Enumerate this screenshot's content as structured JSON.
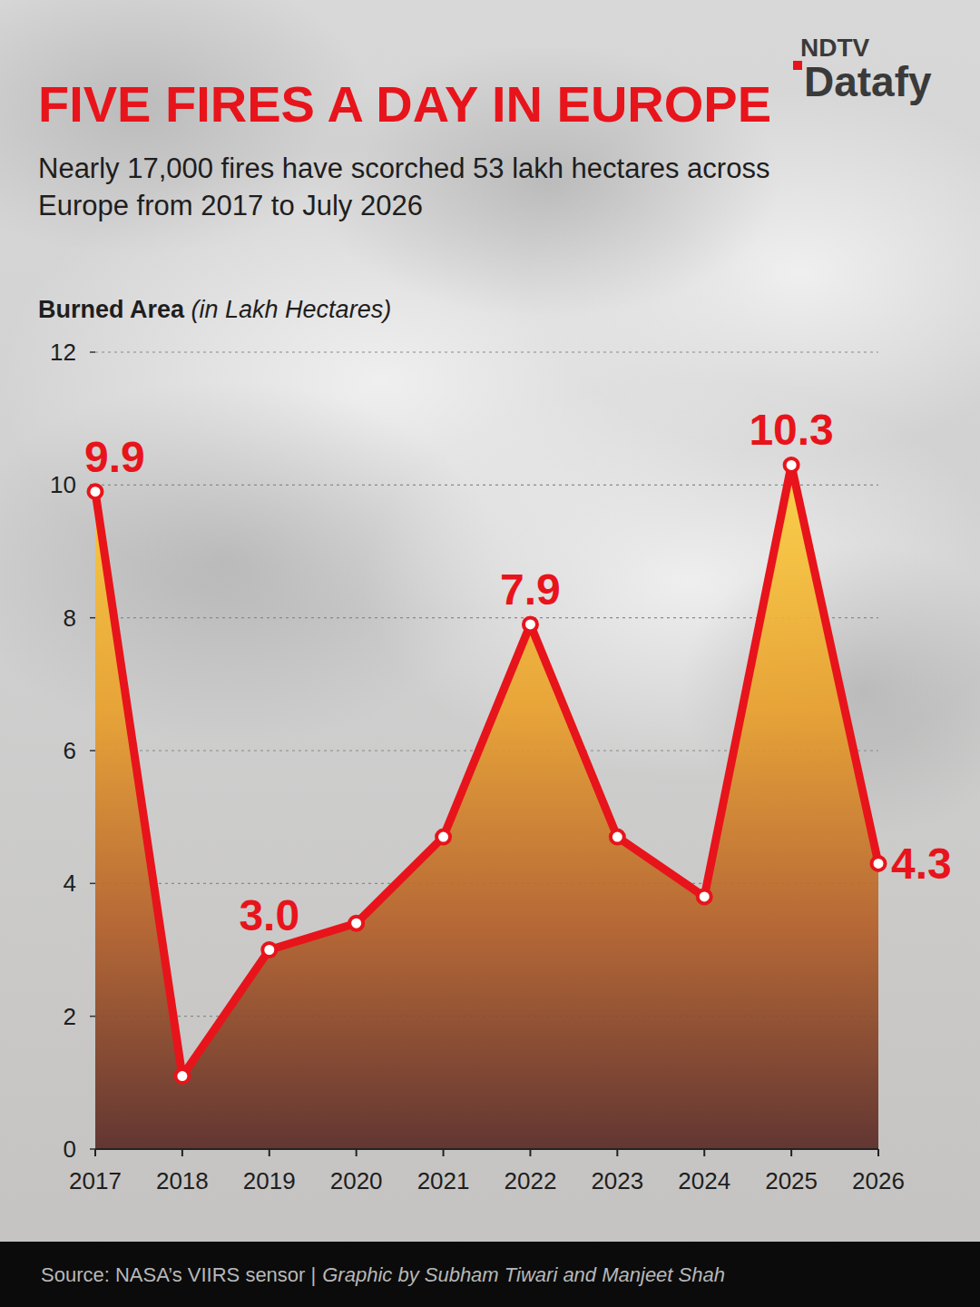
{
  "chart_data": {
    "type": "line",
    "title": "FIVE FIRES A DAY IN EUROPE",
    "subtitle": "Nearly 17,000 fires have scorched 53 lakh hectares across Europe from 2017 to July 2026",
    "ylabel": "Burned Area (in Lakh Hectares)",
    "categories": [
      "2017",
      "2018",
      "2019",
      "2020",
      "2021",
      "2022",
      "2023",
      "2024",
      "2025",
      "2026"
    ],
    "values": [
      9.9,
      1.1,
      3.0,
      3.4,
      4.7,
      7.9,
      4.7,
      3.8,
      10.3,
      4.3
    ],
    "value_labels": [
      "9.9",
      null,
      "3.0",
      null,
      null,
      "7.9",
      null,
      null,
      "10.3",
      "4.3"
    ],
    "color": "#e8141b",
    "ylim": [
      0,
      12
    ],
    "yticks": [
      0,
      2,
      4,
      6,
      8,
      10,
      12
    ],
    "grid": true,
    "data_labels": true,
    "marker": "circle",
    "source": "Source: NASA’s VIIRS sensor |",
    "credit": "Graphic by Subham Tiwari and Manjeet Shah",
    "brand": "NDTV",
    "brand_sub": "Datafy"
  }
}
